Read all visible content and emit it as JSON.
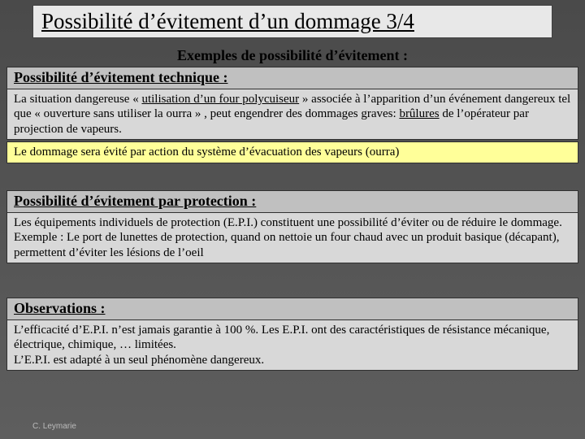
{
  "title": "Possibilité d’évitement d’un dommage 3/4",
  "subheader": "Exemples de possibilité d’évitement :",
  "section1": {
    "title": "Possibilité d’évitement technique :",
    "body_html": "La situation dangereuse « <span class='u'>utilisation d’un four polycuiseur</span> » associée à l’apparition d’un événement dangereux tel que « ouverture sans utiliser la ourra » , peut engendrer des dommages graves: <span class='u'>brûlures</span> de l’opérateur par projection de vapeurs.",
    "highlight": "Le dommage sera évité par action du système d’évacuation des vapeurs (ourra)"
  },
  "section2": {
    "title": "Possibilité d’évitement par protection :",
    "body_html": "Les équipements individuels de protection (E.P.I.) constituent une possibilité d’éviter ou de réduire le dommage.<br>Exemple : Le port de lunettes de protection, quand on nettoie un four chaud avec un produit basique (décapant), permettent d’éviter les lésions de l’oeil"
  },
  "section3": {
    "title": "Observations :",
    "body_html": "L’efficacité d’E.P.I. n’est jamais garantie à 100 %. Les E.P.I. ont des caractéristiques de résistance mécanique, électrique, chimique, … limitées.<br>L’E.P.I. est adapté à un seul phénomène dangereux."
  },
  "footer": "C. Leymarie",
  "colors": {
    "title_bg": "#e8e8e8",
    "section_bg": "#c0c0c0",
    "body_bg": "#d8d8d8",
    "highlight_bg": "#ffff99",
    "slide_bg_top": "#4a4a4a",
    "slide_bg_bottom": "#5e5e5e",
    "border": "#303030",
    "footer_text": "#bcbcbc"
  },
  "typography": {
    "title_fontsize": 27,
    "section_title_fontsize": 18,
    "subheader_fontsize": 18,
    "body_fontsize": 15,
    "footer_fontsize": 10,
    "font_family": "Times New Roman"
  }
}
